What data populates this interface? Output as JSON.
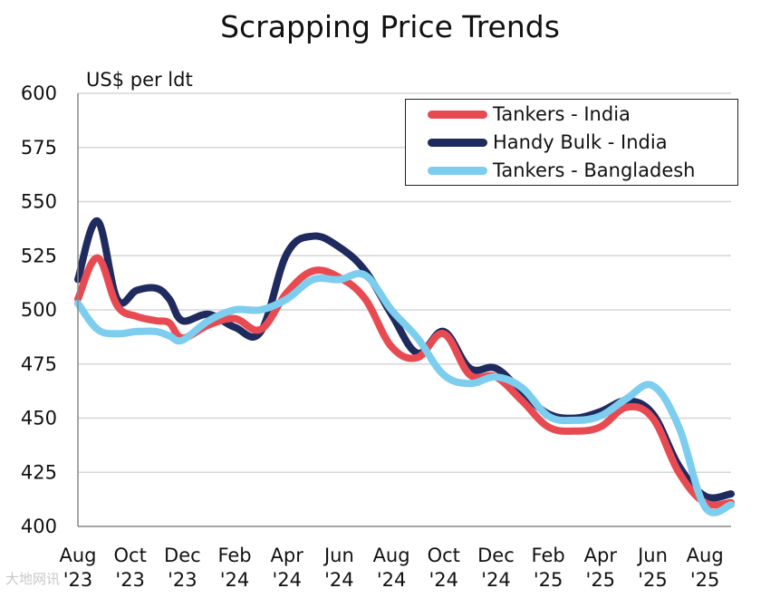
{
  "chart_data": {
    "type": "line",
    "title": "Scrapping Price Trends",
    "ylabel": "US$ per ldt",
    "xlabel": "",
    "ylim": [
      400,
      600
    ],
    "yticks": [
      "400",
      "425",
      "450",
      "475",
      "500",
      "525",
      "550",
      "575",
      "600"
    ],
    "grid": true,
    "legend_position": "top-right",
    "xticks": [
      {
        "month": "Aug",
        "year": "'23"
      },
      {
        "month": "Oct",
        "year": "'23"
      },
      {
        "month": "Dec",
        "year": "'23"
      },
      {
        "month": "Feb",
        "year": "'24"
      },
      {
        "month": "Apr",
        "year": "'24"
      },
      {
        "month": "Jun",
        "year": "'24"
      },
      {
        "month": "Aug",
        "year": "'24"
      },
      {
        "month": "Oct",
        "year": "'24"
      },
      {
        "month": "Dec",
        "year": "'24"
      },
      {
        "month": "Feb",
        "year": "'25"
      },
      {
        "month": "Apr",
        "year": "'25"
      },
      {
        "month": "Jun",
        "year": "'25"
      },
      {
        "month": "Aug",
        "year": "'25"
      }
    ],
    "series": [
      {
        "name": "Handy Bulk - India",
        "color": "#1f2a5e",
        "points": [
          [
            0,
            514
          ],
          [
            0.75,
            541
          ],
          [
            1.5,
            505
          ],
          [
            2.25,
            509
          ],
          [
            3,
            510
          ],
          [
            3.5,
            505
          ],
          [
            4,
            495
          ],
          [
            5,
            498
          ],
          [
            6,
            492
          ],
          [
            7,
            490
          ],
          [
            8,
            526
          ],
          [
            9,
            534
          ],
          [
            10,
            529
          ],
          [
            11,
            518
          ],
          [
            12,
            498
          ],
          [
            13,
            480
          ],
          [
            14,
            490
          ],
          [
            15,
            473
          ],
          [
            16,
            473
          ],
          [
            17,
            462
          ],
          [
            18,
            452
          ],
          [
            19,
            450
          ],
          [
            20,
            453
          ],
          [
            21,
            458
          ],
          [
            22,
            452
          ],
          [
            23,
            428
          ],
          [
            24,
            414
          ],
          [
            25,
            415
          ]
        ]
      },
      {
        "name": "Tankers - India",
        "color": "#e84a52",
        "points": [
          [
            0,
            505
          ],
          [
            0.75,
            524
          ],
          [
            1.5,
            502
          ],
          [
            2.25,
            497
          ],
          [
            3,
            495
          ],
          [
            3.5,
            494
          ],
          [
            4,
            487
          ],
          [
            5,
            493
          ],
          [
            6,
            496
          ],
          [
            7,
            491
          ],
          [
            8,
            508
          ],
          [
            9,
            518
          ],
          [
            10,
            515
          ],
          [
            11,
            505
          ],
          [
            12,
            483
          ],
          [
            13,
            478
          ],
          [
            14,
            489
          ],
          [
            15,
            470
          ],
          [
            16,
            469
          ],
          [
            17,
            458
          ],
          [
            18,
            446
          ],
          [
            19,
            444
          ],
          [
            20,
            446
          ],
          [
            21,
            455
          ],
          [
            22,
            450
          ],
          [
            23,
            425
          ],
          [
            24,
            411
          ],
          [
            25,
            411
          ]
        ]
      },
      {
        "name": "Tankers - Bangladesh",
        "color": "#7dcdef",
        "points": [
          [
            0,
            503
          ],
          [
            0.75,
            491
          ],
          [
            1.5,
            489
          ],
          [
            2.25,
            490
          ],
          [
            3,
            490
          ],
          [
            3.5,
            488
          ],
          [
            4,
            486
          ],
          [
            5,
            495
          ],
          [
            6,
            500
          ],
          [
            7,
            500
          ],
          [
            8,
            505
          ],
          [
            9,
            514
          ],
          [
            10,
            514
          ],
          [
            11,
            516
          ],
          [
            12,
            500
          ],
          [
            13,
            487
          ],
          [
            14,
            470
          ],
          [
            15,
            466
          ],
          [
            16,
            469
          ],
          [
            17,
            464
          ],
          [
            18,
            451
          ],
          [
            19,
            449
          ],
          [
            20,
            451
          ],
          [
            21,
            459
          ],
          [
            22,
            465
          ],
          [
            23,
            446
          ],
          [
            24,
            409
          ],
          [
            25,
            410
          ]
        ]
      }
    ]
  },
  "watermark": "大地网讯"
}
